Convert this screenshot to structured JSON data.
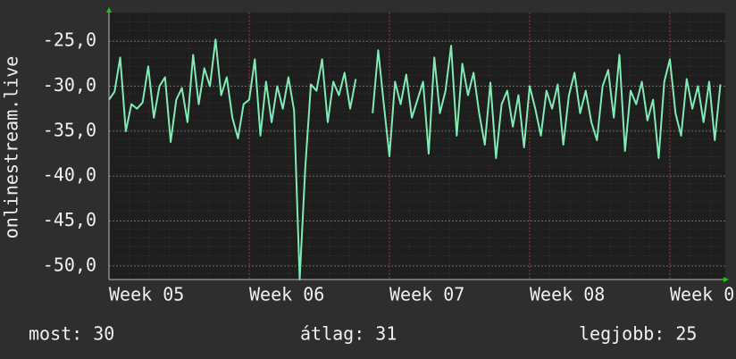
{
  "chart_data": {
    "type": "line",
    "ylabel": "onlinestream.live",
    "xlim": [
      0,
      4.395
    ],
    "ylim": [
      -51.5,
      -21.8
    ],
    "xticks": [
      {
        "value": 0,
        "label": "Week 05"
      },
      {
        "value": 1,
        "label": "Week 06"
      },
      {
        "value": 2,
        "label": "Week 07"
      },
      {
        "value": 3,
        "label": "Week 08"
      },
      {
        "value": 4,
        "label": "Week 0"
      }
    ],
    "yticks": [
      {
        "value": -25,
        "label": "-25,0"
      },
      {
        "value": -30,
        "label": "-30,0"
      },
      {
        "value": -35,
        "label": "-35,0"
      },
      {
        "value": -40,
        "label": "-40,0"
      },
      {
        "value": -45,
        "label": "-45,0"
      },
      {
        "value": -50,
        "label": "-50,0"
      }
    ],
    "grid": true,
    "x": [
      0,
      0.04,
      0.08,
      0.12,
      0.16,
      0.2,
      0.24,
      0.28,
      0.32,
      0.36,
      0.4,
      0.44,
      0.48,
      0.52,
      0.56,
      0.6,
      0.64,
      0.68,
      0.72,
      0.76,
      0.8,
      0.84,
      0.88,
      0.92,
      0.96,
      1,
      1.04,
      1.08,
      1.12,
      1.16,
      1.2,
      1.24,
      1.28,
      1.32,
      1.36,
      1.4,
      1.44,
      1.48,
      1.52,
      1.56,
      1.6,
      1.64,
      1.68,
      1.72,
      1.76,
      1.8,
      1.84,
      1.88,
      1.92,
      1.96,
      2,
      2.04,
      2.08,
      2.12,
      2.16,
      2.2,
      2.24,
      2.28,
      2.32,
      2.36,
      2.4,
      2.44,
      2.48,
      2.52,
      2.56,
      2.6,
      2.64,
      2.68,
      2.72,
      2.76,
      2.8,
      2.84,
      2.88,
      2.92,
      2.96,
      3,
      3.04,
      3.08,
      3.12,
      3.16,
      3.2,
      3.24,
      3.28,
      3.32,
      3.36,
      3.4,
      3.44,
      3.48,
      3.52,
      3.56,
      3.6,
      3.64,
      3.68,
      3.72,
      3.76,
      3.8,
      3.84,
      3.88,
      3.92,
      3.96,
      4,
      4.04,
      4.08,
      4.12,
      4.16,
      4.2,
      4.24,
      4.28,
      4.32,
      4.36
    ],
    "series": [
      {
        "color": "#80ebb4",
        "values": [
          -31.5,
          -30.6,
          -26.8,
          -35,
          -32,
          -32.5,
          -31.8,
          -27.8,
          -33.5,
          -30,
          -29,
          -36.2,
          -31.5,
          -30.2,
          -34,
          -26.5,
          -32,
          -28,
          -30,
          -24.8,
          -31,
          -29,
          -33.5,
          -35.8,
          -32,
          -31.5,
          -27,
          -35.5,
          -29.5,
          -34,
          -30,
          -32.5,
          -29,
          -32.7,
          -51.5,
          -39,
          -29.8,
          -30.5,
          -27,
          -34,
          -29.5,
          -31,
          -28.5,
          -32.5,
          -29.2,
          null,
          null,
          -33,
          -26,
          -32,
          -37.8,
          -29.5,
          -32,
          -28.7,
          -33.5,
          -31.5,
          -29.5,
          -37.5,
          -26.8,
          -33,
          -30.5,
          -25.5,
          -35.5,
          -27.5,
          -31,
          -28.5,
          -33,
          -36.5,
          -29.6,
          -38,
          -32,
          -30.5,
          -34.5,
          -31,
          -36.8,
          -30,
          -32.5,
          -35.5,
          -30.5,
          -32.5,
          -29.8,
          -36.5,
          -31,
          -28.5,
          -33,
          -30.5,
          -34,
          -36,
          -30,
          -28.2,
          -33.5,
          -26.5,
          -37.2,
          -30.5,
          -32,
          -29.5,
          -33.8,
          -31.5,
          -38,
          -29.5,
          -27,
          -33,
          -35.5,
          -29.2,
          -32.5,
          -30,
          -34,
          -29.5,
          -36,
          -29.8
        ]
      }
    ],
    "footer": [
      "most: 30",
      "átlag: 31",
      "legjobb: 25"
    ]
  }
}
